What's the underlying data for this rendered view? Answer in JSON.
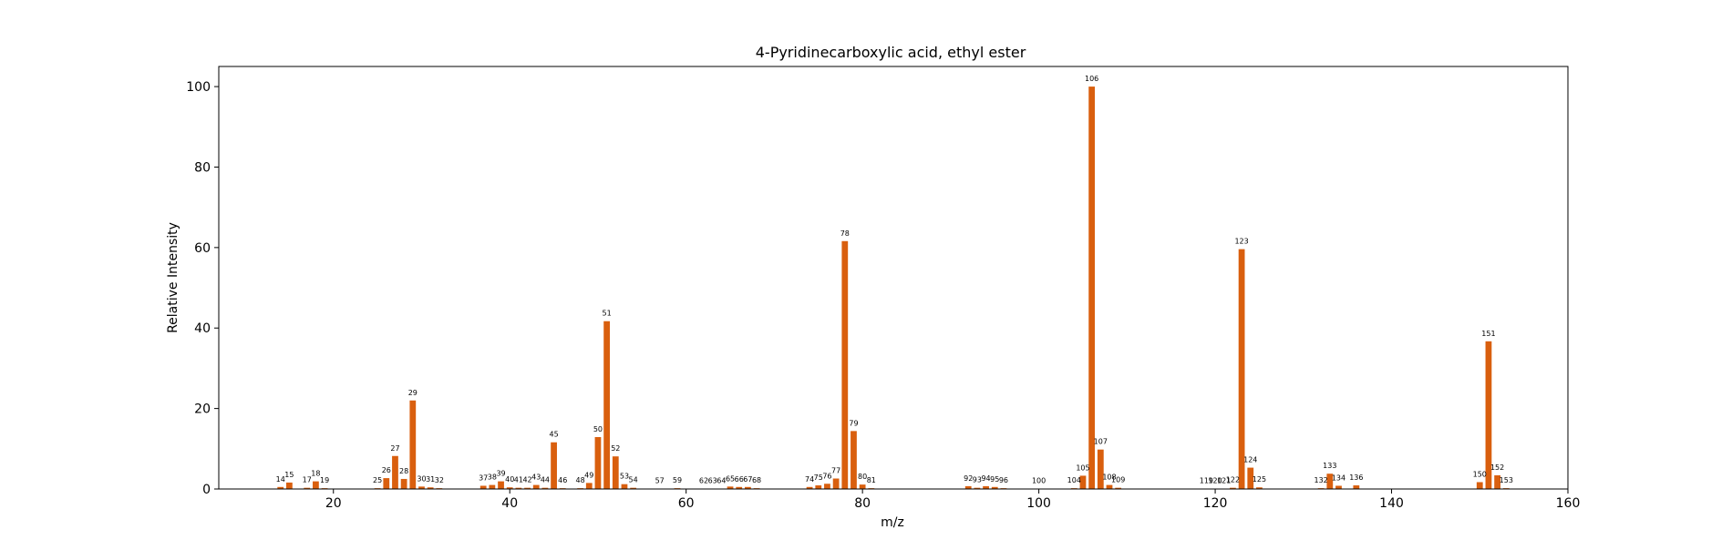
{
  "chart_data": {
    "type": "bar",
    "title": "4-Pyridinecarboxylic acid, ethyl ester",
    "xlabel": "m/z",
    "ylabel": "Relative Intensity",
    "xlim": [
      7,
      160
    ],
    "ylim": [
      0,
      105
    ],
    "xticks": [
      20,
      40,
      60,
      80,
      100,
      120,
      140,
      160
    ],
    "yticks": [
      0,
      20,
      40,
      60,
      80,
      100
    ],
    "bar_color": "#d95f0e",
    "grid": false,
    "legend": "none",
    "x": [
      14,
      15,
      17,
      18,
      19,
      25,
      26,
      27,
      28,
      29,
      30,
      31,
      32,
      37,
      38,
      39,
      40,
      41,
      42,
      43,
      44,
      45,
      46,
      48,
      49,
      50,
      51,
      52,
      53,
      54,
      57,
      59,
      62,
      63,
      64,
      65,
      66,
      67,
      68,
      74,
      75,
      76,
      77,
      78,
      79,
      80,
      81,
      92,
      93,
      94,
      95,
      96,
      100,
      104,
      105,
      106,
      107,
      108,
      109,
      119,
      120,
      121,
      122,
      123,
      124,
      125,
      132,
      133,
      134,
      136,
      150,
      151,
      152,
      153
    ],
    "values": [
      0.5,
      1.6,
      0.3,
      1.9,
      0.2,
      0.2,
      2.7,
      8.2,
      2.5,
      22.0,
      0.6,
      0.4,
      0.2,
      0.8,
      1.0,
      1.9,
      0.4,
      0.3,
      0.3,
      1.0,
      0.3,
      11.6,
      0.2,
      0.2,
      1.5,
      12.9,
      41.7,
      8.1,
      1.2,
      0.3,
      0.1,
      0.2,
      0.1,
      0.1,
      0.1,
      0.6,
      0.5,
      0.5,
      0.2,
      0.5,
      0.9,
      1.3,
      2.6,
      61.6,
      14.4,
      1.1,
      0.2,
      0.7,
      0.3,
      0.7,
      0.5,
      0.2,
      0.1,
      0.2,
      3.3,
      100.0,
      9.8,
      1.0,
      0.3,
      0.1,
      0.1,
      0.1,
      0.3,
      59.6,
      5.3,
      0.4,
      0.2,
      3.8,
      0.8,
      0.9,
      1.7,
      36.7,
      3.4,
      0.2
    ]
  }
}
